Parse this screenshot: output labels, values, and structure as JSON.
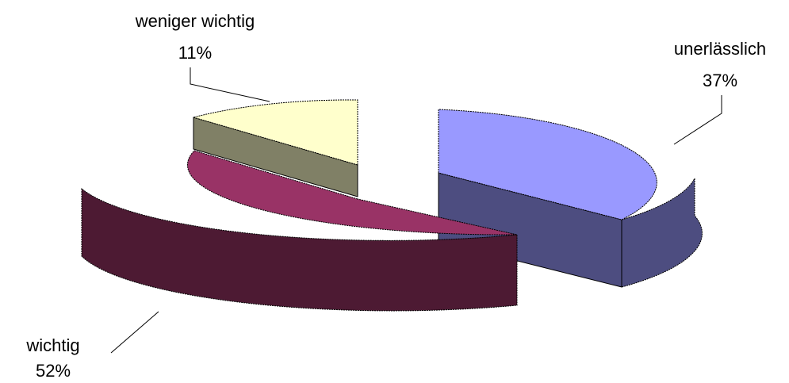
{
  "chart_data": {
    "type": "pie",
    "title": "",
    "slices": [
      {
        "label": "unerlässlich",
        "percent_label": "37%",
        "value": 37,
        "top_color": "#9999ff",
        "side_color": "#4d4d80"
      },
      {
        "label": "wichtig",
        "percent_label": "52%",
        "value": 52,
        "top_color": "#993366",
        "side_color": "#4d1a33"
      },
      {
        "label": "weniger wichtig",
        "percent_label": "11%",
        "value": 11,
        "top_color": "#ffffcc",
        "side_color": "#808066"
      }
    ],
    "exploded": true,
    "style": "3d"
  }
}
